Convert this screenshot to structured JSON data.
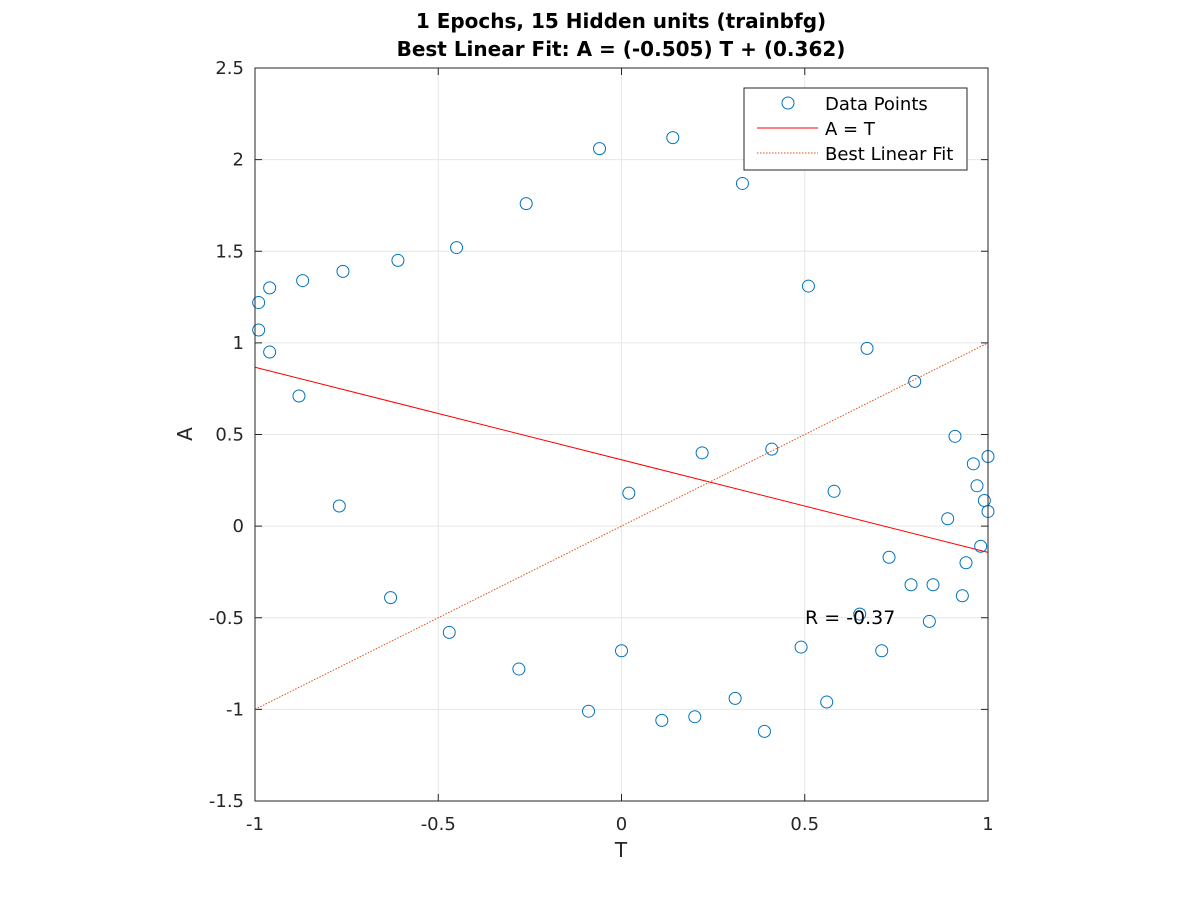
{
  "chart_data": {
    "type": "scatter",
    "title": [
      "1 Epochs, 15 Hidden units (trainbfg)",
      "Best Linear Fit:  A = (-0.505) T + (0.362)"
    ],
    "xlabel": "T",
    "ylabel": "A",
    "xlim": [
      -1,
      1
    ],
    "ylim": [
      -1.5,
      2.5
    ],
    "xticks": [
      -1,
      -0.5,
      0,
      0.5,
      1
    ],
    "xtick_labels": [
      "-1",
      "-0.5",
      "0",
      "0.5",
      "1"
    ],
    "yticks": [
      -1.5,
      -1,
      -0.5,
      0,
      0.5,
      1,
      1.5,
      2,
      2.5
    ],
    "ytick_labels": [
      "-1.5",
      "-1",
      "-0.5",
      "0",
      "0.5",
      "1",
      "1.5",
      "2",
      "2.5"
    ],
    "grid": true,
    "legend_position": "top-right",
    "legend": [
      "Data Points",
      "A = T",
      "Best Linear Fit"
    ],
    "colors": {
      "points": "#0072BD",
      "fit_line": "#FF0000",
      "identity_line": "#D95319",
      "grid": "#E6E6E6",
      "axis": "#262626"
    },
    "annotation": {
      "text": "R = -0.37",
      "x": 0.5,
      "y": -0.5
    },
    "fit_line": {
      "slope": -0.505,
      "intercept": 0.362
    },
    "identity_line": {
      "slope": 1,
      "intercept": 0
    },
    "series": [
      {
        "points": [
          [
            -0.99,
            1.22
          ],
          [
            -0.99,
            1.07
          ],
          [
            -0.96,
            1.3
          ],
          [
            -0.96,
            0.95
          ],
          [
            -0.88,
            0.71
          ],
          [
            -0.87,
            1.34
          ],
          [
            -0.77,
            0.11
          ],
          [
            -0.76,
            1.39
          ],
          [
            -0.63,
            -0.39
          ],
          [
            -0.61,
            1.45
          ],
          [
            -0.47,
            -0.58
          ],
          [
            -0.45,
            1.52
          ],
          [
            -0.28,
            -0.78
          ],
          [
            -0.26,
            1.76
          ],
          [
            -0.09,
            -1.01
          ],
          [
            -0.06,
            2.06
          ],
          [
            0.0,
            -0.68
          ],
          [
            0.02,
            0.18
          ],
          [
            0.11,
            -1.06
          ],
          [
            0.14,
            2.12
          ],
          [
            0.2,
            -1.04
          ],
          [
            0.22,
            0.4
          ],
          [
            0.31,
            -0.94
          ],
          [
            0.33,
            1.87
          ],
          [
            0.39,
            -1.12
          ],
          [
            0.41,
            0.42
          ],
          [
            0.49,
            -0.66
          ],
          [
            0.51,
            1.31
          ],
          [
            0.56,
            -0.96
          ],
          [
            0.58,
            0.19
          ],
          [
            0.65,
            -0.48
          ],
          [
            0.67,
            0.97
          ],
          [
            0.71,
            -0.68
          ],
          [
            0.73,
            -0.17
          ],
          [
            0.79,
            -0.32
          ],
          [
            0.8,
            0.79
          ],
          [
            0.84,
            -0.52
          ],
          [
            0.85,
            -0.32
          ],
          [
            0.89,
            0.04
          ],
          [
            0.91,
            0.49
          ],
          [
            0.93,
            -0.38
          ],
          [
            0.94,
            -0.2
          ],
          [
            0.96,
            0.34
          ],
          [
            0.97,
            0.22
          ],
          [
            0.98,
            -0.11
          ],
          [
            0.99,
            0.14
          ],
          [
            1.0,
            0.08
          ],
          [
            1.0,
            0.38
          ]
        ]
      }
    ]
  }
}
